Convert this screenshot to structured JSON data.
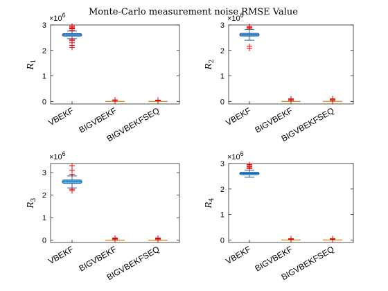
{
  "figure_title": "Monte-Carlo measurement noise RMSE Value",
  "colors": {
    "box_fill": "#5BB7E8",
    "box_edge": "#1F5FA8",
    "whisker": "#1F5FA8",
    "median": "#1F5FA8",
    "outlier": "#E00000",
    "flat_median": "#E08000",
    "axis": "#262626"
  },
  "chart_data": [
    {
      "type": "boxplot",
      "ylabel_symbol": "R",
      "ylabel_sub": "1",
      "exponent_base": "×10",
      "exponent_power": "6",
      "ylim": [
        -0.1,
        3.0
      ],
      "yticks": [
        "0",
        "1",
        "2",
        "3"
      ],
      "categories": [
        "VBEKF",
        "BIGVBEKF",
        "BIGVBEKFSEQ"
      ],
      "series": [
        {
          "q1": 2.56,
          "median": 2.61,
          "q3": 2.66,
          "whisker_low": 2.46,
          "whisker_high": 2.76,
          "outliers": [
            2.12,
            2.2,
            2.3,
            2.38,
            2.43,
            2.8,
            2.85,
            2.88,
            2.92,
            2.96
          ]
        },
        {
          "q1": 0.0,
          "median": 0.0,
          "q3": 0.0,
          "whisker_low": 0.0,
          "whisker_high": 0.0,
          "outliers": [
            0.02,
            0.06
          ]
        },
        {
          "q1": 0.0,
          "median": 0.0,
          "q3": 0.0,
          "whisker_low": 0.0,
          "whisker_high": 0.0,
          "outliers": [
            0.02,
            0.05
          ]
        }
      ]
    },
    {
      "type": "boxplot",
      "ylabel_symbol": "R",
      "ylabel_sub": "2",
      "exponent_base": "×10",
      "exponent_power": "6",
      "ylim": [
        -0.1,
        3.0
      ],
      "yticks": [
        "0",
        "1",
        "2",
        "3"
      ],
      "categories": [
        "VBEKF",
        "BIGVBEKF",
        "BIGVBEKFSEQ"
      ],
      "series": [
        {
          "q1": 2.56,
          "median": 2.62,
          "q3": 2.67,
          "whisker_low": 2.4,
          "whisker_high": 2.82,
          "outliers": [
            2.08,
            2.16,
            2.86,
            2.9,
            2.94
          ]
        },
        {
          "q1": 0.0,
          "median": 0.0,
          "q3": 0.0,
          "whisker_low": 0.0,
          "whisker_high": 0.0,
          "outliers": [
            0.03,
            0.07,
            0.1
          ]
        },
        {
          "q1": 0.0,
          "median": 0.0,
          "q3": 0.0,
          "whisker_low": 0.0,
          "whisker_high": 0.0,
          "outliers": [
            0.03,
            0.07,
            0.1
          ]
        }
      ]
    },
    {
      "type": "boxplot",
      "ylabel_symbol": "R",
      "ylabel_sub": "3",
      "exponent_base": "×10",
      "exponent_power": "6",
      "ylim": [
        -0.1,
        3.4
      ],
      "yticks": [
        "0",
        "1",
        "2",
        "3"
      ],
      "categories": [
        "VBEKF",
        "BIGVBEKF",
        "BIGVBEKFSEQ"
      ],
      "series": [
        {
          "q1": 2.52,
          "median": 2.6,
          "q3": 2.67,
          "whisker_low": 2.32,
          "whisker_high": 2.85,
          "outliers": [
            2.2,
            2.26,
            2.92,
            3.1,
            3.3
          ]
        },
        {
          "q1": 0.0,
          "median": 0.0,
          "q3": 0.0,
          "whisker_low": 0.0,
          "whisker_high": 0.0,
          "outliers": [
            0.03,
            0.07,
            0.1
          ]
        },
        {
          "q1": 0.0,
          "median": 0.0,
          "q3": 0.0,
          "whisker_low": 0.0,
          "whisker_high": 0.0,
          "outliers": [
            0.03,
            0.07,
            0.1
          ]
        }
      ]
    },
    {
      "type": "boxplot",
      "ylabel_symbol": "R",
      "ylabel_sub": "4",
      "exponent_base": "×10",
      "exponent_power": "6",
      "ylim": [
        -0.1,
        3.0
      ],
      "yticks": [
        "0",
        "1",
        "2",
        "3"
      ],
      "categories": [
        "VBEKF",
        "BIGVBEKF",
        "BIGVBEKFSEQ"
      ],
      "series": [
        {
          "q1": 2.56,
          "median": 2.61,
          "q3": 2.66,
          "whisker_low": 2.46,
          "whisker_high": 2.74,
          "outliers": [
            2.8,
            2.84,
            2.88,
            2.92,
            2.96
          ]
        },
        {
          "q1": 0.0,
          "median": 0.0,
          "q3": 0.0,
          "whisker_low": 0.0,
          "whisker_high": 0.0,
          "outliers": [
            0.02,
            0.05
          ]
        },
        {
          "q1": 0.0,
          "median": 0.0,
          "q3": 0.0,
          "whisker_low": 0.0,
          "whisker_high": 0.0,
          "outliers": [
            0.02,
            0.05
          ]
        }
      ]
    }
  ]
}
